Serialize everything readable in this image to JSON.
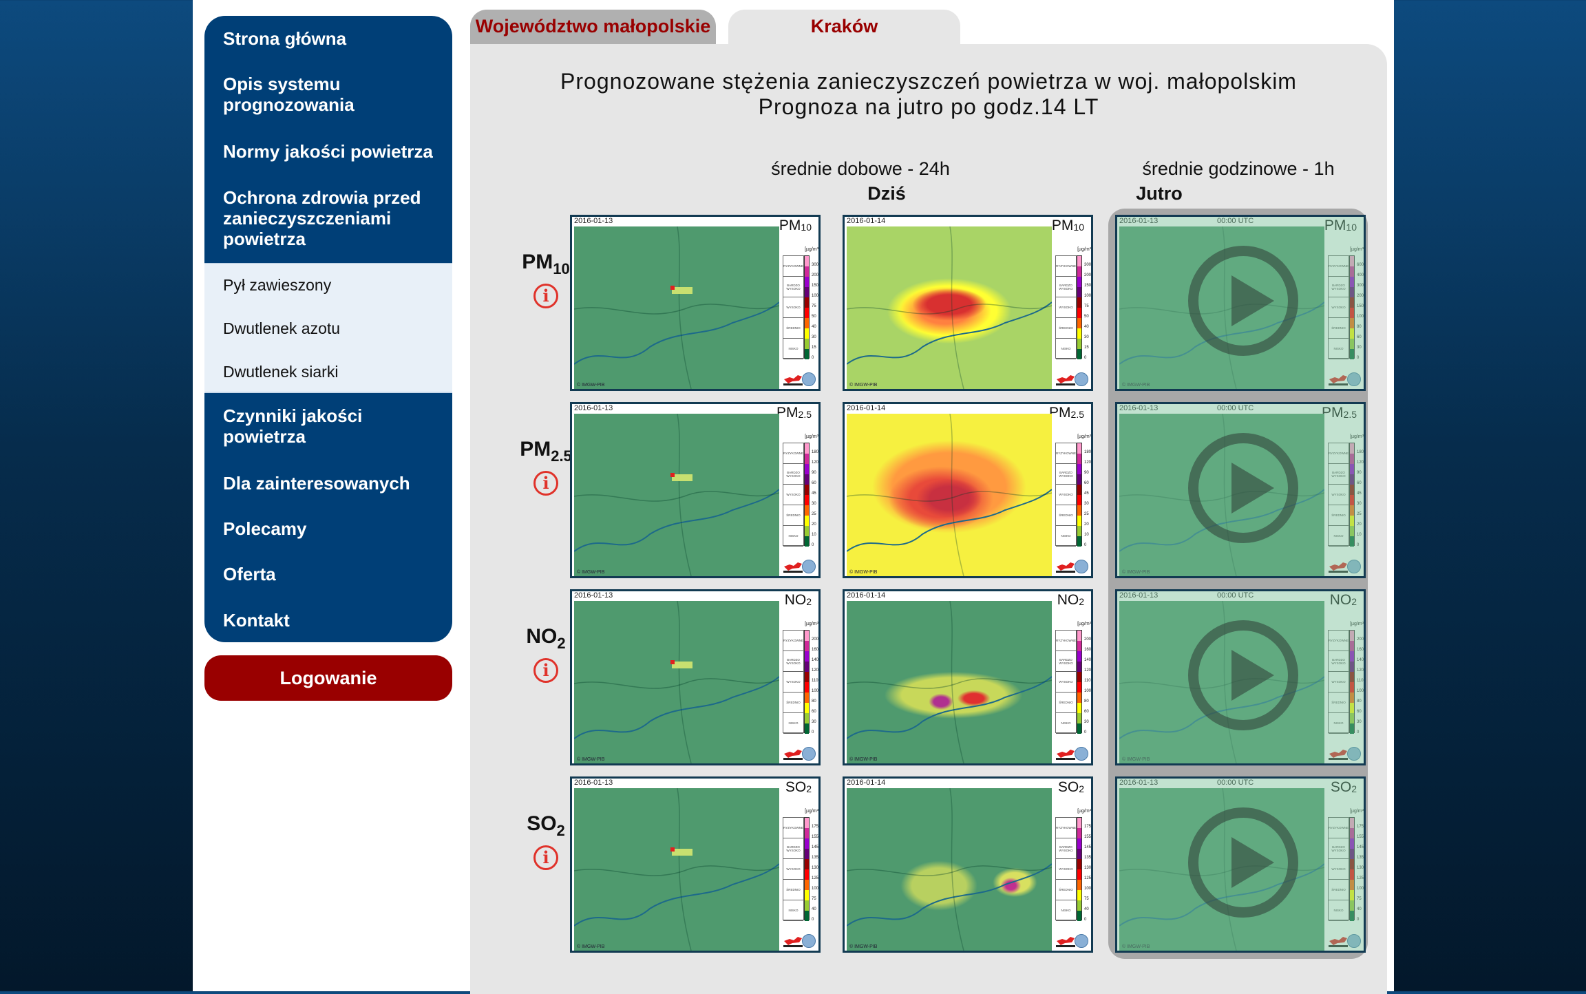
{
  "sidebar": {
    "items": [
      "Strona główna",
      "Opis systemu prognozowania",
      "Normy jakości powietrza",
      "Ochrona zdrowia przed zanieczyszczeniami powietrza"
    ],
    "subitems": [
      "Pył zawieszony",
      "Dwutlenek azotu",
      "Dwutlenek siarki"
    ],
    "items2": [
      "Czynniki jakości powietrza",
      "Dla zainteresowanych",
      "Polecamy",
      "Oferta",
      "Kontakt"
    ],
    "login": "Logowanie"
  },
  "tabs": [
    "Województwo małopolskie",
    "Kraków"
  ],
  "main": {
    "title1": "Prognozowane stężenia zanieczyszczeń powietrza w woj. małopolskim",
    "title2": "Prognoza na jutro po godz.14 LT",
    "daily_header": "średnie dobowe - 24h",
    "hourly_header": "średnie godzinowe - 1h",
    "today": "Dziś",
    "tomorrow": "Jutro"
  },
  "legend": {
    "unit": "[µg/m³]",
    "categories": [
      "RYZYKOWNE",
      "BARDZO WYSOKO",
      "WYSOKO",
      "ŚREDNIO",
      "NISKO"
    ],
    "colors": [
      "#ff99cc",
      "#d02a9a",
      "#9a00cc",
      "#660077",
      "#990000",
      "#ff0000",
      "#ff6600",
      "#ffff00",
      "#99cc33",
      "#006633"
    ]
  },
  "copyright": "© IMGW-PIB",
  "rows": [
    {
      "label": "PM",
      "sub": "10",
      "ticks": [
        "300",
        "200",
        "150",
        "100",
        "75",
        "50",
        "40",
        "30",
        "15",
        "0"
      ],
      "hourly_ticks": [
        "600",
        "400",
        "300",
        "200",
        "150",
        "100",
        "80",
        "60",
        "30",
        "0"
      ]
    },
    {
      "label": "PM",
      "sub": "2.5",
      "ticks": [
        "180",
        "120",
        "90",
        "60",
        "45",
        "30",
        "25",
        "20",
        "10",
        "0"
      ],
      "hourly_ticks": [
        "180",
        "120",
        "90",
        "60",
        "45",
        "30",
        "25",
        "20",
        "10",
        "0"
      ]
    },
    {
      "label": "NO",
      "sub": "2",
      "ticks": [
        "200",
        "160",
        "140",
        "120",
        "110",
        "100",
        "80",
        "60",
        "30",
        "0"
      ],
      "hourly_ticks": [
        "200",
        "160",
        "140",
        "120",
        "110",
        "100",
        "80",
        "60",
        "30",
        "0"
      ]
    },
    {
      "label": "SO",
      "sub": "2",
      "ticks": [
        "175",
        "155",
        "145",
        "135",
        "130",
        "125",
        "100",
        "75",
        "40",
        "0"
      ],
      "hourly_ticks": [
        "175",
        "155",
        "145",
        "135",
        "130",
        "125",
        "100",
        "75",
        "40",
        "0"
      ]
    }
  ],
  "maps": {
    "today_date": "2016-01-13",
    "tomorrow_date": "2016-01-14",
    "hourly_date": "2016-01-13",
    "hourly_time": "00:00 UTC"
  }
}
